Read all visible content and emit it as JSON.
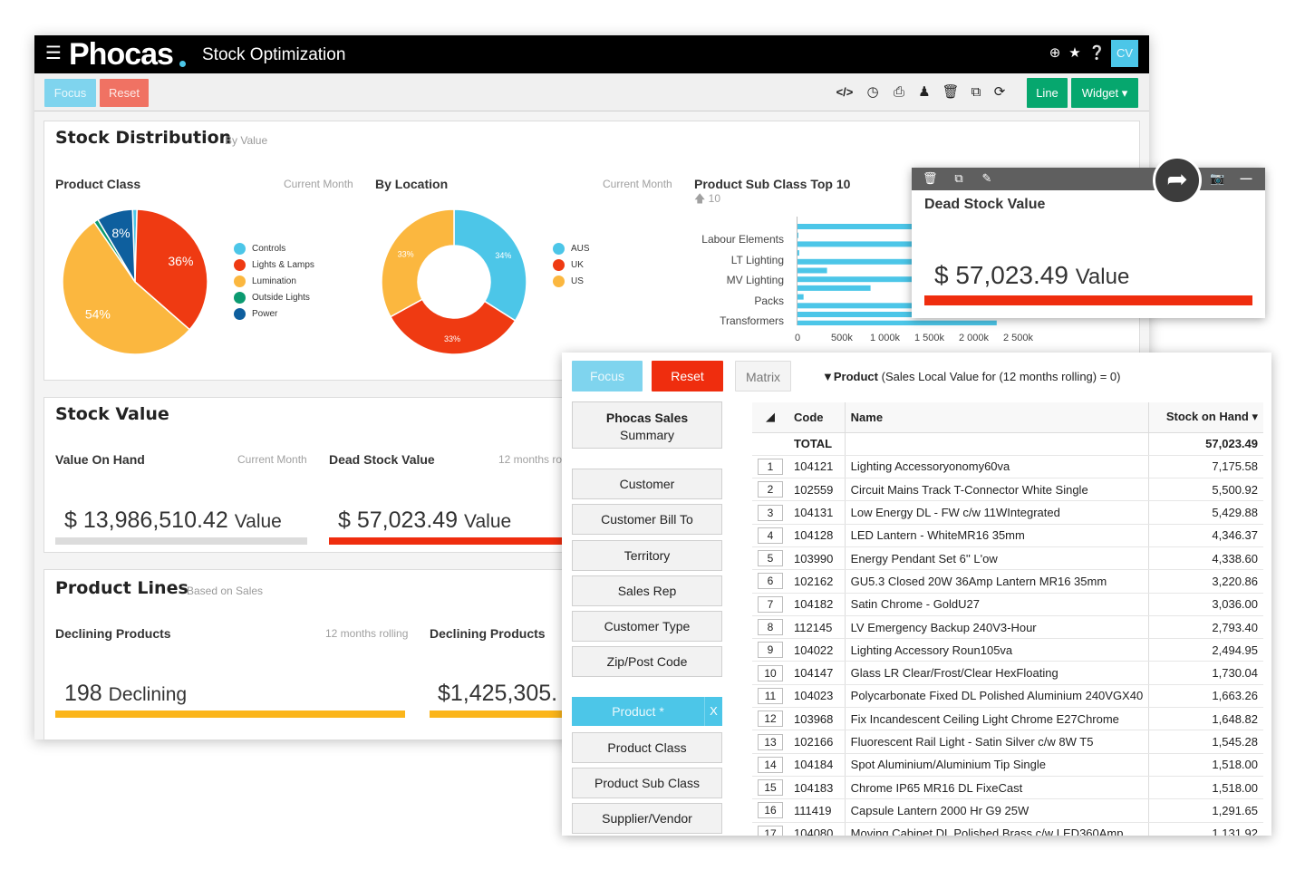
{
  "app": {
    "logo": "Phocas",
    "title": "Stock Optimization",
    "avatar": "CV",
    "topbar_icons": [
      "add-circle-icon",
      "star-icon",
      "help-icon"
    ]
  },
  "toolbar": {
    "focus_label": "Focus",
    "reset_label": "Reset",
    "line_label": "Line",
    "widget_label": "Widget ▾",
    "icons": [
      "code-icon",
      "clock-icon",
      "print-icon",
      "share-user-icon",
      "trash-icon",
      "copy-icon",
      "refresh-icon"
    ]
  },
  "stock_distribution": {
    "title": "Stock Distribution",
    "subtitle": "By Value",
    "product_class": {
      "title": "Product Class",
      "period": "Current Month",
      "legend": [
        "Controls",
        "Lights & Lamps",
        "Lumination",
        "Outside Lights",
        "Power"
      ],
      "slices": [
        {
          "name": "Controls",
          "value": 1,
          "color": "#4cc6e8",
          "label": ""
        },
        {
          "name": "Lights & Lamps",
          "value": 36,
          "color": "#ef3a12",
          "label": "36%"
        },
        {
          "name": "Lumination",
          "value": 54,
          "color": "#fbb73f",
          "label": "54%"
        },
        {
          "name": "Outside Lights",
          "value": 1,
          "color": "#0b9a70",
          "label": ""
        },
        {
          "name": "Power",
          "value": 8,
          "color": "#0e5f9e",
          "label": "8%"
        }
      ]
    },
    "by_location": {
      "title": "By Location",
      "period": "Current Month",
      "legend": [
        "AUS",
        "UK",
        "US"
      ],
      "slices": [
        {
          "name": "AUS",
          "value": 34,
          "color": "#4cc6e8",
          "label": "34%"
        },
        {
          "name": "UK",
          "value": 33,
          "color": "#ef3a12",
          "label": "33%"
        },
        {
          "name": "US",
          "value": 33,
          "color": "#fbb73f",
          "label": "33%"
        }
      ]
    },
    "sub_class": {
      "title": "Product Sub Class Top 10",
      "top_label": "10",
      "categories": [
        "Labour Elements",
        "LT Lighting",
        "MV Lighting",
        "Packs",
        "Transformers"
      ],
      "bar_values": [
        1950,
        20,
        2600,
        30,
        2700,
        350,
        2100,
        850,
        80,
        2550,
        2300,
        2300
      ],
      "xticks": [
        "0",
        "500k",
        "1 000k",
        "1 500k",
        "2 000k",
        "2 500k"
      ],
      "xmax": 2500
    }
  },
  "dead_stock_popup": {
    "title": "Dead Stock Value",
    "amount": "$ 57,023.49",
    "unit": "Value",
    "icons": [
      "trash-icon",
      "copy-icon",
      "edit-icon",
      "camera-icon",
      "minimize-icon"
    ]
  },
  "stock_value": {
    "title": "Stock Value",
    "value_on_hand": {
      "title": "Value On Hand",
      "period": "Current Month",
      "amount": "$ 13,986,510.42",
      "unit": "Value"
    },
    "dead_stock": {
      "title": "Dead Stock Value",
      "period": "12 months ro",
      "amount": "$ 57,023.49",
      "unit": "Value"
    }
  },
  "product_lines": {
    "title": "Product Lines",
    "subtitle": "Based on Sales",
    "declining": {
      "title": "Declining Products",
      "period": "12 months rolling",
      "amount": "198",
      "unit": "Declining"
    },
    "declining2": {
      "title": "Declining Products",
      "amount": "$1,425,305."
    }
  },
  "analysis": {
    "focus_label": "Focus",
    "reset_label": "Reset",
    "matrix_label": "Matrix",
    "filter_field": "Product",
    "filter_text": "(Sales Local Value for (12 months rolling) = 0)",
    "summary_line1": "Phocas Sales",
    "summary_line2": "Summary",
    "nav": [
      "Customer",
      "Customer Bill To",
      "Territory",
      "Sales Rep",
      "Customer Type",
      "Zip/Post Code"
    ],
    "active_dim": "Product *",
    "active_close": "X",
    "nav2": [
      "Product Class",
      "Product Sub Class",
      "Supplier/Vendor"
    ],
    "columns": {
      "code": "Code",
      "name": "Name",
      "soh": "Stock on Hand ▾"
    },
    "total_label": "TOTAL",
    "total_value": "57,023.49",
    "rows": [
      {
        "idx": "1",
        "code": "104121",
        "name": "Lighting Accessoryonomy60va",
        "soh": "7,175.58"
      },
      {
        "idx": "2",
        "code": "102559",
        "name": "Circuit Mains Track T-Connector White Single",
        "soh": "5,500.92"
      },
      {
        "idx": "3",
        "code": "104131",
        "name": "Low Energy DL - FW c/w 11WIntegrated",
        "soh": "5,429.88"
      },
      {
        "idx": "4",
        "code": "104128",
        "name": "LED Lantern - WhiteMR16 35mm",
        "soh": "4,346.37"
      },
      {
        "idx": "5",
        "code": "103990",
        "name": "Energy Pendant Set 6'' L'ow",
        "soh": "4,338.60"
      },
      {
        "idx": "6",
        "code": "102162",
        "name": "GU5.3 Closed 20W 36Amp Lantern MR16 35mm",
        "soh": "3,220.86"
      },
      {
        "idx": "7",
        "code": "104182",
        "name": "Satin Chrome - GoldU27",
        "soh": "3,036.00"
      },
      {
        "idx": "8",
        "code": "112145",
        "name": "LV Emergency Backup 240V3-Hour",
        "soh": "2,793.40"
      },
      {
        "idx": "9",
        "code": "104022",
        "name": "Lighting Accessory Roun105va",
        "soh": "2,494.95"
      },
      {
        "idx": "10",
        "code": "104147",
        "name": "Glass LR Clear/Frost/Clear HexFloating",
        "soh": "1,730.04"
      },
      {
        "idx": "11",
        "code": "104023",
        "name": "Polycarbonate Fixed DL Polished Aluminium 240VGX40",
        "soh": "1,663.26"
      },
      {
        "idx": "12",
        "code": "103968",
        "name": "Fix Incandescent Ceiling Light Chrome E27Chrome",
        "soh": "1,648.82"
      },
      {
        "idx": "13",
        "code": "102166",
        "name": "Fluorescent Rail Light - Satin Silver c/w 8W T5",
        "soh": "1,545.28"
      },
      {
        "idx": "14",
        "code": "104184",
        "name": "Spot Aluminium/Aluminium Tip Single",
        "soh": "1,518.00"
      },
      {
        "idx": "15",
        "code": "104183",
        "name": "Chrome IP65 MR16 DL FixeCast",
        "soh": "1,518.00"
      },
      {
        "idx": "16",
        "code": "111419",
        "name": "Capsule Lantern 2000 Hr G9 25W",
        "soh": "1,291.65"
      },
      {
        "idx": "17",
        "code": "104080",
        "name": "Moving Cabinet DL Polished Brass c/w LED360Amp",
        "soh": "1,131.92"
      }
    ]
  }
}
